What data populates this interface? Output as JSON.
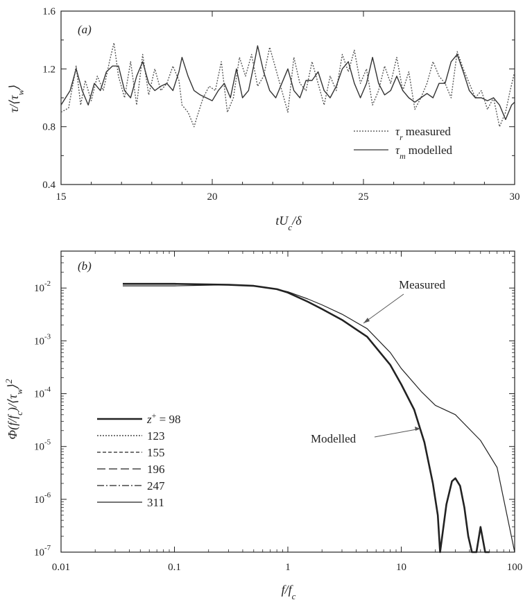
{
  "chart_data": [
    {
      "type": "line",
      "panel_label": "(a)",
      "xlabel": "tU_c/δ",
      "ylabel": "τ/⟨τ_w⟩",
      "xlim": [
        15,
        30
      ],
      "ylim": [
        0.4,
        1.6
      ],
      "xticks": [
        "15",
        "20",
        "25",
        "30"
      ],
      "yticks": [
        "0.4",
        "0.8",
        "1.2",
        "1.6"
      ],
      "grid": false,
      "legend": {
        "placement": "lower-right",
        "entries": [
          {
            "symbol": "τ",
            "sub": "r",
            "text": "measured",
            "style": "dotted"
          },
          {
            "symbol": "τ",
            "sub": "m",
            "text": "modelled",
            "style": "solid"
          }
        ]
      },
      "series": [
        {
          "name": "τr measured",
          "style": "dotted",
          "x": [
            15.0,
            15.25,
            15.5,
            15.65,
            15.8,
            16.0,
            16.2,
            16.4,
            16.6,
            16.75,
            16.9,
            17.1,
            17.3,
            17.5,
            17.7,
            17.9,
            18.1,
            18.3,
            18.5,
            18.7,
            18.9,
            19.0,
            19.2,
            19.4,
            19.5,
            19.7,
            19.9,
            20.1,
            20.3,
            20.5,
            20.7,
            20.9,
            21.1,
            21.3,
            21.5,
            21.7,
            21.9,
            22.1,
            22.3,
            22.5,
            22.7,
            22.9,
            23.1,
            23.3,
            23.5,
            23.7,
            23.9,
            24.1,
            24.3,
            24.5,
            24.7,
            24.9,
            25.1,
            25.3,
            25.5,
            25.7,
            25.9,
            26.1,
            26.3,
            26.5,
            26.7,
            26.9,
            27.1,
            27.3,
            27.5,
            27.7,
            27.9,
            28.1,
            28.3,
            28.5,
            28.7,
            28.9,
            29.1,
            29.3,
            29.5,
            29.7,
            29.85,
            30.0
          ],
          "y": [
            0.9,
            0.93,
            1.22,
            0.95,
            1.12,
            0.98,
            1.15,
            1.05,
            1.25,
            1.38,
            1.15,
            1.0,
            1.25,
            0.95,
            1.3,
            1.02,
            1.2,
            1.05,
            1.1,
            1.22,
            1.12,
            0.95,
            0.9,
            0.8,
            0.87,
            1.0,
            1.08,
            1.05,
            1.25,
            0.9,
            1.0,
            1.28,
            1.15,
            1.3,
            1.08,
            1.15,
            1.35,
            1.2,
            1.05,
            0.9,
            1.28,
            1.1,
            1.05,
            1.25,
            1.1,
            0.95,
            1.15,
            1.05,
            1.3,
            1.18,
            1.33,
            1.1,
            1.2,
            0.95,
            1.05,
            1.22,
            1.1,
            1.28,
            1.05,
            1.18,
            0.92,
            1.0,
            1.1,
            1.25,
            1.15,
            1.1,
            1.0,
            1.32,
            1.2,
            1.1,
            1.0,
            1.05,
            0.92,
            1.0,
            0.8,
            0.9,
            1.05,
            1.18
          ]
        },
        {
          "name": "τm modelled",
          "style": "solid",
          "x": [
            15.0,
            15.3,
            15.5,
            15.7,
            15.9,
            16.1,
            16.3,
            16.5,
            16.7,
            16.9,
            17.1,
            17.3,
            17.5,
            17.7,
            17.9,
            18.1,
            18.3,
            18.5,
            18.7,
            18.9,
            19.0,
            19.2,
            19.4,
            19.6,
            19.8,
            20.0,
            20.2,
            20.4,
            20.6,
            20.8,
            21.0,
            21.2,
            21.4,
            21.5,
            21.7,
            21.9,
            22.1,
            22.3,
            22.5,
            22.7,
            22.9,
            23.1,
            23.3,
            23.5,
            23.7,
            23.9,
            24.1,
            24.3,
            24.5,
            24.7,
            24.9,
            25.1,
            25.3,
            25.5,
            25.7,
            25.9,
            26.1,
            26.3,
            26.5,
            26.7,
            26.9,
            27.1,
            27.3,
            27.5,
            27.7,
            27.9,
            28.1,
            28.3,
            28.5,
            28.7,
            28.9,
            29.1,
            29.3,
            29.5,
            29.7,
            29.9,
            30.0
          ],
          "y": [
            0.95,
            1.05,
            1.2,
            1.05,
            0.95,
            1.1,
            1.05,
            1.18,
            1.22,
            1.22,
            1.05,
            1.0,
            1.15,
            1.25,
            1.1,
            1.05,
            1.08,
            1.1,
            1.05,
            1.18,
            1.28,
            1.15,
            1.05,
            1.02,
            1.0,
            0.98,
            1.05,
            1.1,
            1.0,
            1.2,
            1.0,
            1.05,
            1.25,
            1.36,
            1.18,
            1.05,
            1.0,
            1.1,
            1.2,
            1.05,
            1.0,
            1.12,
            1.12,
            1.18,
            1.05,
            1.0,
            1.08,
            1.2,
            1.25,
            1.1,
            1.0,
            1.1,
            1.28,
            1.1,
            1.02,
            1.05,
            1.15,
            1.05,
            1.0,
            0.97,
            1.0,
            1.03,
            1.0,
            1.1,
            1.1,
            1.25,
            1.3,
            1.18,
            1.05,
            1.0,
            1.0,
            0.98,
            1.0,
            0.95,
            0.85,
            0.95,
            0.97
          ]
        }
      ]
    },
    {
      "type": "line",
      "panel_label": "(b)",
      "xlabel": "f/f_c",
      "ylabel": "Φ(f/f_c)/⟨τ_w⟩²",
      "xscale": "log",
      "yscale": "log",
      "xlim": [
        0.01,
        100
      ],
      "ylim": [
        1e-07,
        0.05
      ],
      "xticks": [
        "0.01",
        "0.1",
        "1",
        "10",
        "100"
      ],
      "yticks": [
        {
          "base": "10",
          "exp": "-2",
          "value": 0.01
        },
        {
          "base": "10",
          "exp": "-3",
          "value": 0.001
        },
        {
          "base": "10",
          "exp": "-4",
          "value": 0.0001
        },
        {
          "base": "10",
          "exp": "-5",
          "value": 1e-05
        },
        {
          "base": "10",
          "exp": "-6",
          "value": 1e-06
        },
        {
          "base": "10",
          "exp": "-7",
          "value": 1e-07
        }
      ],
      "grid": false,
      "annotations": [
        "Measured",
        "Modelled"
      ],
      "legend": {
        "placement": "left-middle",
        "title_prefix": "z",
        "title_sup": "+",
        "title_eq": " = ",
        "entries": [
          {
            "label": "98",
            "style": "thick-solid"
          },
          {
            "label": "123",
            "style": "dotted"
          },
          {
            "label": "155",
            "style": "short-dashed"
          },
          {
            "label": "196",
            "style": "long-dashed"
          },
          {
            "label": "247",
            "style": "dash-dot"
          },
          {
            "label": "311",
            "style": "thin-solid"
          }
        ]
      },
      "series": [
        {
          "name": "Measured",
          "style": "thin-solid",
          "x": [
            0.035,
            0.1,
            0.3,
            0.5,
            0.8,
            1.0,
            1.5,
            2.0,
            3.0,
            5.0,
            8.0,
            10.0,
            15.0,
            20.0,
            30.0,
            50.0,
            70.0,
            100.0
          ],
          "y": [
            0.011,
            0.011,
            0.0115,
            0.011,
            0.0095,
            0.0085,
            0.0062,
            0.0048,
            0.0032,
            0.0017,
            0.0006,
            0.0003,
            0.00011,
            6e-05,
            4e-05,
            1.3e-05,
            4e-06,
            1e-07
          ]
        },
        {
          "name": "Modelled",
          "style": "thick-solid",
          "x": [
            0.035,
            0.1,
            0.3,
            0.5,
            0.8,
            1.0,
            1.5,
            2.0,
            3.0,
            5.0,
            8.0,
            10.0,
            13.0,
            16.0,
            19.0,
            21.0,
            22.0,
            25.0,
            28.0,
            30.0,
            33.0,
            36.0,
            39.0,
            42.0,
            46.0,
            50.0,
            55.0,
            60.0
          ],
          "y": [
            0.012,
            0.012,
            0.0115,
            0.011,
            0.0095,
            0.0082,
            0.0055,
            0.004,
            0.0025,
            0.0012,
            0.00035,
            0.00015,
            5e-05,
            1.2e-05,
            2e-06,
            5e-07,
            1e-07,
            8e-07,
            2.2e-06,
            2.5e-06,
            1.8e-06,
            7e-07,
            2e-07,
            1e-07,
            1e-07,
            3e-07,
            1e-07,
            1e-07
          ]
        }
      ]
    }
  ]
}
